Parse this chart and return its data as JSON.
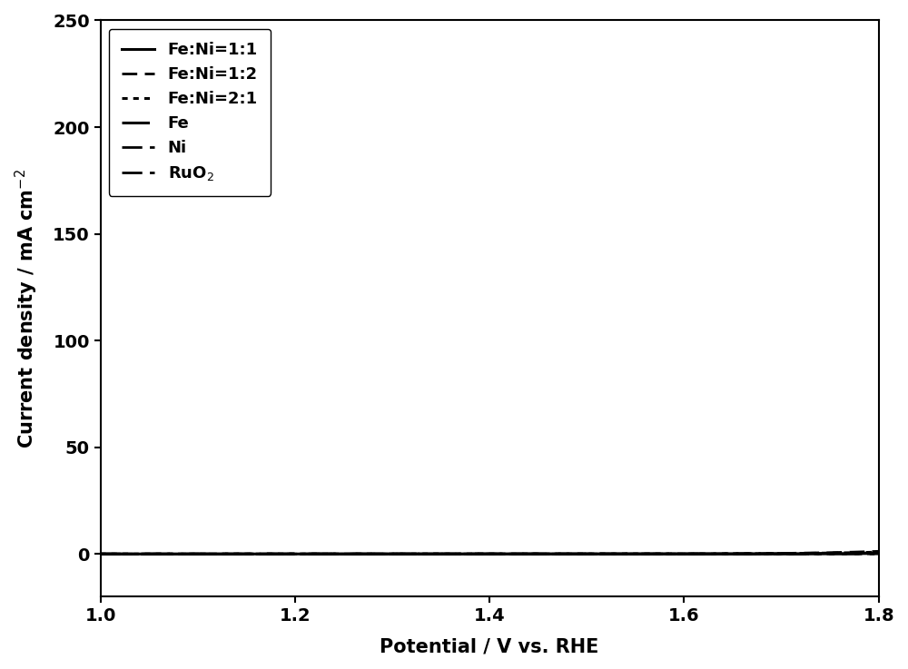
{
  "xlabel": "Potential / V vs. RHE",
  "ylabel": "Current density / mA cm$^{-2}$",
  "xlim": [
    1.0,
    1.8
  ],
  "ylim": [
    -20,
    250
  ],
  "yticks": [
    0,
    50,
    100,
    150,
    200,
    250
  ],
  "xticks": [
    1.0,
    1.2,
    1.4,
    1.6,
    1.8
  ],
  "series": [
    {
      "label": "Fe:Ni=1:1",
      "linestyle": "solid",
      "linewidth": 2.2,
      "onset": 1.5,
      "scale": 0.0012,
      "exponent": 18.0,
      "color": "#000000"
    },
    {
      "label": "Fe:Ni=1:2",
      "linestyle": [
        0,
        [
          6,
          3
        ]
      ],
      "linewidth": 2.0,
      "onset": 1.565,
      "scale": 0.08,
      "exponent": 12.0,
      "color": "#000000"
    },
    {
      "label": "Fe:Ni=2:1",
      "linestyle": [
        0,
        [
          2,
          2
        ]
      ],
      "linewidth": 2.2,
      "onset": 1.572,
      "scale": 0.06,
      "exponent": 12.0,
      "color": "#000000"
    },
    {
      "label": "Fe",
      "linestyle": [
        0,
        [
          10,
          5
        ]
      ],
      "linewidth": 2.2,
      "onset": 1.582,
      "scale": 0.04,
      "exponent": 12.0,
      "color": "#000000"
    },
    {
      "label": "Ni",
      "linestyle": [
        0,
        [
          8,
          3,
          2,
          3
        ]
      ],
      "linewidth": 2.0,
      "onset": 1.593,
      "scale": 0.01,
      "exponent": 12.0,
      "color": "#000000"
    },
    {
      "label": "RuO$_2$",
      "linestyle": [
        0,
        [
          8,
          3,
          2,
          3,
          2,
          3
        ]
      ],
      "linewidth": 2.0,
      "onset": 1.598,
      "scale": 0.003,
      "exponent": 12.0,
      "color": "#000000"
    }
  ],
  "legend_fontsize": 13,
  "axis_fontsize": 15,
  "tick_fontsize": 14,
  "background_color": "#ffffff"
}
